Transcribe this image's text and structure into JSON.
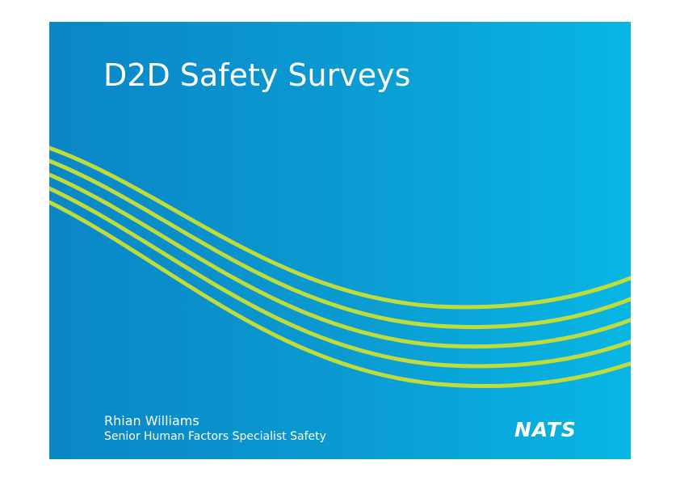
{
  "slide": {
    "title": "D2D Safety Surveys",
    "presenter_name": "Rhian Williams",
    "presenter_role": "Senior Human Factors Specialist Safety",
    "logo_text": "NATS"
  },
  "colors": {
    "background_left": "#0a86c6",
    "background_right": "#08b6e4",
    "wave_lines": "#bfdc3c",
    "text": "#ffffff"
  },
  "decoration": {
    "wave_line_count": 5
  }
}
